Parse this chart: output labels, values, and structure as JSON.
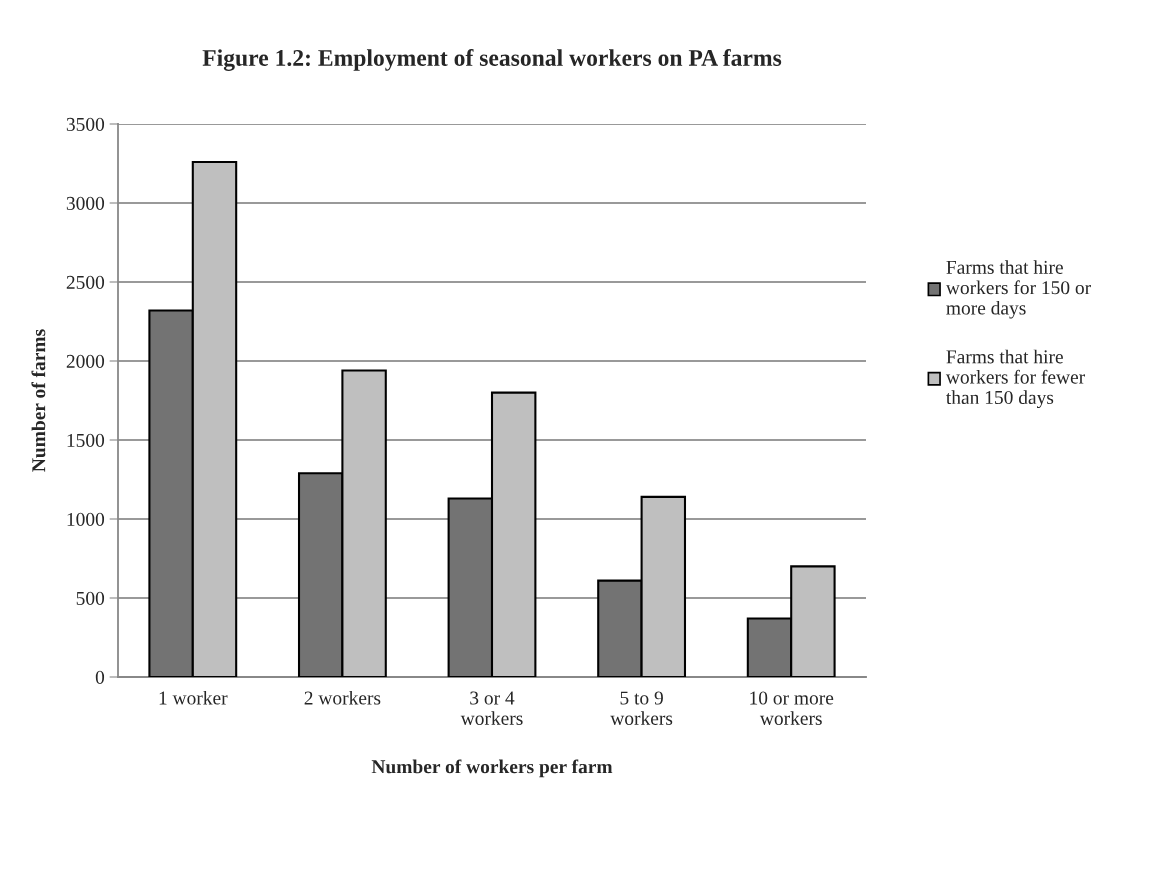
{
  "chart_data": {
    "type": "bar",
    "title": "Figure 1.2: Employment of seasonal workers on PA farms",
    "xlabel": "Number of workers per farm",
    "ylabel": "Number of farms",
    "categories": [
      "1 worker",
      "2 workers",
      "3 or 4 workers",
      "5 to 9 workers",
      "10 or more workers"
    ],
    "series": [
      {
        "name": "Farms that hire workers for 150 or more days",
        "color": "#737373",
        "values": [
          2320,
          1290,
          1130,
          610,
          370
        ]
      },
      {
        "name": "Farms that hire workers for fewer than 150 days",
        "color": "#bfbfbf",
        "values": [
          3260,
          1940,
          1800,
          1140,
          700
        ]
      }
    ],
    "ylim": [
      0,
      3500
    ],
    "yticks": [
      0,
      500,
      1000,
      1500,
      2000,
      2500,
      3000,
      3500
    ],
    "grid": "y",
    "legend": "right"
  }
}
